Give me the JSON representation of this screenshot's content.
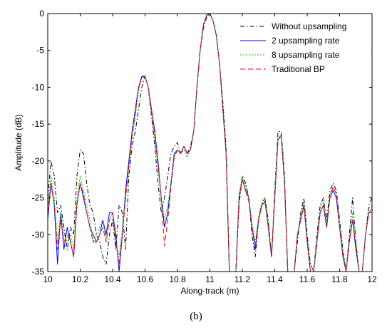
{
  "panel_label": "(b)",
  "chart_data": {
    "type": "line",
    "xlabel": "Along-track (m)",
    "ylabel": "Amplitude (dB)",
    "xlim": [
      10,
      12
    ],
    "ylim": [
      -35,
      0
    ],
    "xticks": [
      "10",
      "10.2",
      "10.4",
      "10.6",
      "10.8",
      "11",
      "11.2",
      "11.4",
      "11.6",
      "11.8",
      "12"
    ],
    "yticks": [
      "0",
      "-5",
      "-10",
      "-15",
      "-20",
      "-25",
      "-30",
      "-35"
    ],
    "legend_position": "top-right",
    "series": [
      {
        "name": "Without upsampling",
        "color": "#000000",
        "style": "dashdot",
        "x": [
          10.0,
          10.02,
          10.04,
          10.06,
          10.08,
          10.1,
          10.12,
          10.14,
          10.16,
          10.18,
          10.2,
          10.22,
          10.24,
          10.26,
          10.28,
          10.3,
          10.32,
          10.34,
          10.36,
          10.38,
          10.4,
          10.42,
          10.44,
          10.46,
          10.48,
          10.5,
          10.52,
          10.54,
          10.56,
          10.58,
          10.6,
          10.62,
          10.64,
          10.66,
          10.68,
          10.7,
          10.72,
          10.74,
          10.76,
          10.78,
          10.8,
          10.82,
          10.84,
          10.86,
          10.88,
          10.9,
          10.92,
          10.94,
          10.96,
          10.98,
          11.0,
          11.02,
          11.04,
          11.06,
          11.08,
          11.1,
          11.12,
          11.14,
          11.16,
          11.18,
          11.2,
          11.22,
          11.24,
          11.26,
          11.28,
          11.3,
          11.32,
          11.34,
          11.36,
          11.38,
          11.4,
          11.42,
          11.44,
          11.46,
          11.48,
          11.5,
          11.52,
          11.54,
          11.56,
          11.58,
          11.6,
          11.62,
          11.64,
          11.66,
          11.68,
          11.7,
          11.72,
          11.74,
          11.76,
          11.78,
          11.8,
          11.82,
          11.84,
          11.86,
          11.88,
          11.9,
          11.92,
          11.94,
          11.96,
          11.98,
          12.0
        ],
        "y": [
          -25,
          -20,
          -22,
          -27,
          -26,
          -29,
          -32,
          -29,
          -30,
          -22,
          -18.5,
          -19,
          -23,
          -26,
          -27,
          -30,
          -31,
          -33,
          -34,
          -30,
          -28,
          -32,
          -26,
          -27,
          -32,
          -22,
          -18,
          -16,
          -13,
          -10,
          -8.5,
          -10,
          -14,
          -18,
          -23,
          -27,
          -25,
          -22,
          -19,
          -18,
          -17.5,
          -19,
          -18,
          -19,
          -18,
          -16,
          -10,
          -5,
          -2,
          -0.5,
          0,
          -1,
          -3,
          -7,
          -12,
          -18,
          -35,
          -35,
          -35,
          -26,
          -22,
          -23,
          -25,
          -30,
          -33,
          -28,
          -26,
          -25,
          -28,
          -33,
          -24,
          -16,
          -16,
          -22,
          -35,
          -35,
          -35,
          -31,
          -27,
          -25,
          -30,
          -34,
          -35,
          -30,
          -26,
          -25,
          -28,
          -24,
          -23,
          -24,
          -28,
          -32,
          -35,
          -30,
          -25,
          -31,
          -35,
          -35,
          -30,
          -26,
          -25
        ]
      },
      {
        "name": "2 upsampling rate",
        "color": "#0000ff",
        "style": "solid",
        "x": [
          10.0,
          10.02,
          10.04,
          10.06,
          10.08,
          10.1,
          10.12,
          10.14,
          10.16,
          10.18,
          10.2,
          10.22,
          10.24,
          10.26,
          10.28,
          10.3,
          10.32,
          10.34,
          10.36,
          10.38,
          10.4,
          10.42,
          10.44,
          10.46,
          10.48,
          10.5,
          10.52,
          10.54,
          10.56,
          10.58,
          10.6,
          10.62,
          10.64,
          10.66,
          10.68,
          10.7,
          10.72,
          10.74,
          10.76,
          10.78,
          10.8,
          10.82,
          10.84,
          10.86,
          10.88,
          10.9,
          10.92,
          10.94,
          10.96,
          10.98,
          11.0,
          11.02,
          11.04,
          11.06,
          11.08,
          11.1,
          11.12,
          11.14,
          11.16,
          11.18,
          11.2,
          11.22,
          11.24,
          11.26,
          11.28,
          11.3,
          11.32,
          11.34,
          11.36,
          11.38,
          11.4,
          11.42,
          11.44,
          11.46,
          11.48,
          11.5,
          11.52,
          11.54,
          11.56,
          11.58,
          11.6,
          11.62,
          11.64,
          11.66,
          11.68,
          11.7,
          11.72,
          11.74,
          11.76,
          11.78,
          11.8,
          11.82,
          11.84,
          11.86,
          11.88,
          11.9,
          11.92,
          11.94,
          11.96,
          11.98,
          12.0
        ],
        "y": [
          -28,
          -23,
          -26,
          -34,
          -27,
          -32,
          -29,
          -31,
          -33,
          -26,
          -23,
          -25,
          -27,
          -29,
          -30,
          -31,
          -30,
          -28,
          -30,
          -27,
          -27,
          -30,
          -35,
          -30,
          -24,
          -20,
          -16,
          -13,
          -10,
          -8.5,
          -8.5,
          -10,
          -13,
          -16,
          -20,
          -25,
          -29,
          -27,
          -23,
          -19,
          -18.5,
          -19,
          -18,
          -19,
          -18.5,
          -16,
          -10,
          -5,
          -1.5,
          -0.2,
          0,
          -1,
          -3,
          -7,
          -13,
          -19,
          -35,
          -35,
          -35,
          -25,
          -22.5,
          -24,
          -25,
          -29,
          -32,
          -28,
          -26,
          -25.5,
          -29,
          -33,
          -25,
          -17,
          -16.5,
          -23,
          -35,
          -35,
          -35,
          -30,
          -28,
          -26,
          -31,
          -35,
          -35,
          -31,
          -27,
          -26,
          -29,
          -25,
          -24,
          -25,
          -29,
          -33,
          -35,
          -31,
          -28,
          -32,
          -35,
          -35,
          -30,
          -27,
          -27
        ]
      },
      {
        "name": "8 upsampling rate",
        "color": "#00c000",
        "style": "dotted",
        "x": [
          10.0,
          10.02,
          10.04,
          10.06,
          10.08,
          10.1,
          10.12,
          10.14,
          10.16,
          10.18,
          10.2,
          10.22,
          10.24,
          10.26,
          10.28,
          10.3,
          10.32,
          10.34,
          10.36,
          10.38,
          10.4,
          10.42,
          10.44,
          10.46,
          10.48,
          10.5,
          10.52,
          10.54,
          10.56,
          10.58,
          10.6,
          10.62,
          10.64,
          10.66,
          10.68,
          10.7,
          10.72,
          10.74,
          10.76,
          10.78,
          10.8,
          10.82,
          10.84,
          10.86,
          10.88,
          10.9,
          10.92,
          10.94,
          10.96,
          10.98,
          11.0,
          11.02,
          11.04,
          11.06,
          11.08,
          11.1,
          11.12,
          11.14,
          11.16,
          11.18,
          11.2,
          11.22,
          11.24,
          11.26,
          11.28,
          11.3,
          11.32,
          11.34,
          11.36,
          11.38,
          11.4,
          11.42,
          11.44,
          11.46,
          11.48,
          11.5,
          11.52,
          11.54,
          11.56,
          11.58,
          11.6,
          11.62,
          11.64,
          11.66,
          11.68,
          11.7,
          11.72,
          11.74,
          11.76,
          11.78,
          11.8,
          11.82,
          11.84,
          11.86,
          11.88,
          11.9,
          11.92,
          11.94,
          11.96,
          11.98,
          12.0
        ],
        "y": [
          -26,
          -22,
          -25,
          -31,
          -27,
          -30,
          -31,
          -30,
          -32,
          -25,
          -22,
          -24,
          -26,
          -28,
          -31,
          -30,
          -29,
          -28,
          -31,
          -28,
          -27,
          -31,
          -33,
          -29,
          -25,
          -21,
          -17,
          -14,
          -10.5,
          -8.8,
          -8.6,
          -10,
          -13.5,
          -17,
          -21,
          -25,
          -28,
          -26,
          -23,
          -19.5,
          -18.5,
          -19,
          -18.5,
          -19.5,
          -18.5,
          -16,
          -10,
          -5,
          -1.5,
          -0.3,
          0,
          -1,
          -3,
          -7,
          -12.5,
          -18.5,
          -35,
          -35,
          -35,
          -24.5,
          -22,
          -23.5,
          -25,
          -28.5,
          -31,
          -27.5,
          -25.5,
          -25,
          -28.5,
          -32.5,
          -24.5,
          -17,
          -16.5,
          -22.5,
          -35,
          -35,
          -35,
          -30,
          -27.5,
          -25.5,
          -30.5,
          -34,
          -35,
          -30.5,
          -26.5,
          -25.5,
          -28.5,
          -24.5,
          -23.5,
          -24.5,
          -28.5,
          -32,
          -35,
          -30.5,
          -27,
          -31,
          -35,
          -35,
          -30,
          -26.5,
          -26
        ]
      },
      {
        "name": "Traditional BP",
        "color": "#ff0000",
        "style": "dashed",
        "x": [
          10.0,
          10.02,
          10.04,
          10.06,
          10.08,
          10.1,
          10.12,
          10.14,
          10.16,
          10.18,
          10.2,
          10.22,
          10.24,
          10.26,
          10.28,
          10.3,
          10.32,
          10.34,
          10.36,
          10.38,
          10.4,
          10.42,
          10.44,
          10.46,
          10.48,
          10.5,
          10.52,
          10.54,
          10.56,
          10.58,
          10.6,
          10.62,
          10.64,
          10.66,
          10.68,
          10.7,
          10.72,
          10.74,
          10.76,
          10.78,
          10.8,
          10.82,
          10.84,
          10.86,
          10.88,
          10.9,
          10.92,
          10.94,
          10.96,
          10.98,
          11.0,
          11.02,
          11.04,
          11.06,
          11.08,
          11.1,
          11.12,
          11.14,
          11.16,
          11.18,
          11.2,
          11.22,
          11.24,
          11.26,
          11.28,
          11.3,
          11.32,
          11.34,
          11.36,
          11.38,
          11.4,
          11.42,
          11.44,
          11.46,
          11.48,
          11.5,
          11.52,
          11.54,
          11.56,
          11.58,
          11.6,
          11.62,
          11.64,
          11.66,
          11.68,
          11.7,
          11.72,
          11.74,
          11.76,
          11.78,
          11.8,
          11.82,
          11.84,
          11.86,
          11.88,
          11.9,
          11.92,
          11.94,
          11.96,
          11.98,
          12.0
        ],
        "y": [
          -27,
          -23,
          -26,
          -32,
          -28,
          -31,
          -30,
          -31,
          -33,
          -26,
          -23,
          -24.5,
          -27,
          -29,
          -31,
          -31,
          -30,
          -29,
          -31,
          -28,
          -27,
          -31,
          -34,
          -30,
          -25,
          -20.5,
          -16.5,
          -13.5,
          -10,
          -8.7,
          -8.5,
          -10,
          -13,
          -16.5,
          -20.5,
          -25,
          -31.5,
          -28,
          -23.5,
          -19.5,
          -18.5,
          -19,
          -18,
          -19,
          -18.5,
          -16,
          -10,
          -5,
          -1.5,
          -0.2,
          0,
          -1,
          -3,
          -7,
          -13,
          -19,
          -35,
          -35,
          -35,
          -25,
          -22.5,
          -24,
          -25.5,
          -29,
          -31.5,
          -28,
          -26,
          -25.5,
          -29,
          -33,
          -25,
          -17,
          -16.8,
          -23,
          -35,
          -35,
          -35,
          -30,
          -28,
          -26,
          -31,
          -35,
          -35,
          -31,
          -27,
          -26,
          -29,
          -25,
          -23.5,
          -24.5,
          -29,
          -33,
          -35,
          -31,
          -28,
          -31.5,
          -35,
          -35,
          -30,
          -27,
          -26.5
        ]
      }
    ]
  }
}
